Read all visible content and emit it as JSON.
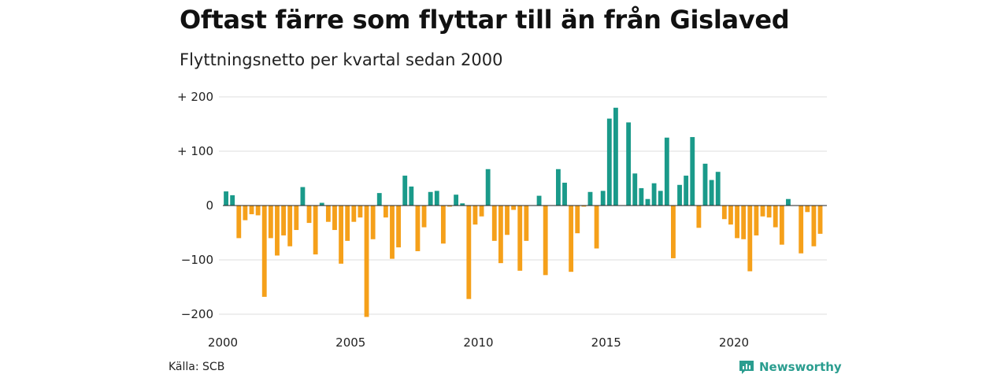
{
  "header": {
    "title": "Oftast färre som flyttar till än från Gislaved",
    "subtitle": "Flyttningsnetto per kvartal sedan 2000"
  },
  "footer": {
    "source": "Källa: SCB",
    "brand": "Newsworthy"
  },
  "colors": {
    "positive": "#1a9a8a",
    "negative": "#f5a01a",
    "grid": "#dddddd",
    "zero_line": "#222222",
    "brand": "#2a9d8f"
  },
  "chart_data": {
    "type": "bar",
    "title": "Oftast färre som flyttar till än från Gislaved",
    "subtitle": "Flyttningsnetto per kvartal sedan 2000",
    "ylim": [
      -200,
      200
    ],
    "y_ticks": [
      200,
      100,
      0,
      -100,
      -200
    ],
    "y_tick_labels": [
      "+ 200",
      "+ 100",
      "0",
      "−100",
      "−200"
    ],
    "x_ticks": [
      2000,
      2005,
      2010,
      2015,
      2020
    ],
    "x_tick_labels": [
      "2000",
      "2005",
      "2010",
      "2015",
      "2020"
    ],
    "grid": true,
    "period": "quarterly",
    "start": "2000 Q1",
    "values": [
      26,
      19,
      -60,
      -27,
      -16,
      -18,
      -168,
      -60,
      -92,
      -55,
      -75,
      -45,
      34,
      -32,
      -90,
      5,
      -30,
      -45,
      -107,
      -65,
      -30,
      -22,
      -205,
      -62,
      23,
      -22,
      -98,
      -77,
      55,
      35,
      -84,
      -40,
      25,
      27,
      -70,
      -2,
      20,
      4,
      -172,
      -35,
      -20,
      67,
      -65,
      -106,
      -54,
      -8,
      -120,
      -65,
      0,
      18,
      -128,
      0,
      67,
      42,
      -122,
      -51,
      -2,
      25,
      -79,
      27,
      160,
      180,
      0,
      153,
      59,
      32,
      12,
      41,
      27,
      125,
      -97,
      38,
      55,
      126,
      -41,
      77,
      47,
      62,
      -25,
      -35,
      -60,
      -62,
      -121,
      -55,
      -20,
      -22,
      -40,
      -72,
      12,
      0,
      -88,
      -12,
      -75,
      -52
    ]
  }
}
